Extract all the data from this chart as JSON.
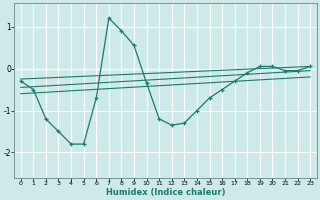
{
  "xlabel": "Humidex (Indice chaleur)",
  "ylabel": "",
  "bg_color": "#ceeae8",
  "grid_color": "#ffffff",
  "line_color": "#1a7a6e",
  "xlim": [
    -0.5,
    23.5
  ],
  "ylim": [
    -2.6,
    1.55
  ],
  "yticks": [
    -2,
    -1,
    0,
    1
  ],
  "xticks": [
    0,
    1,
    2,
    3,
    4,
    5,
    6,
    7,
    8,
    9,
    10,
    11,
    12,
    13,
    14,
    15,
    16,
    17,
    18,
    19,
    20,
    21,
    22,
    23
  ],
  "series": [
    {
      "x": [
        0,
        1,
        2,
        3,
        4,
        5,
        6,
        7,
        8,
        9,
        10,
        11,
        12,
        13,
        14,
        15,
        16,
        17,
        18,
        19,
        20,
        21,
        22,
        23
      ],
      "y": [
        -0.3,
        -0.5,
        -1.2,
        -1.5,
        -1.8,
        -1.8,
        -0.7,
        1.2,
        0.9,
        0.55,
        -0.35,
        -1.2,
        -1.35,
        -1.3,
        -1.0,
        -0.7,
        -0.5,
        -0.3,
        -0.1,
        0.05,
        0.05,
        -0.05,
        -0.05,
        0.05
      ]
    },
    {
      "x": [
        0,
        23
      ],
      "y": [
        -0.25,
        0.05
      ]
    },
    {
      "x": [
        0,
        23
      ],
      "y": [
        -0.45,
        -0.05
      ]
    },
    {
      "x": [
        0,
        23
      ],
      "y": [
        -0.6,
        -0.2
      ]
    }
  ]
}
